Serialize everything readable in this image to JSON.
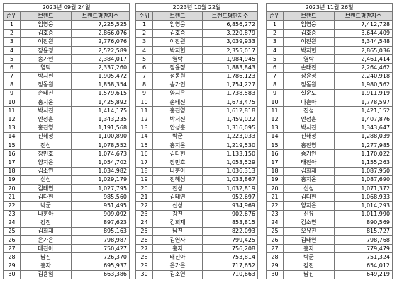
{
  "tables": [
    {
      "date": "2023년 09월 24일",
      "headers": [
        "순위",
        "브랜드",
        "브랜드평판지수"
      ],
      "rows": [
        [
          1,
          "임영웅",
          "7,225,525"
        ],
        [
          2,
          "김호중",
          "2,866,076"
        ],
        [
          3,
          "이찬원",
          "2,776,076"
        ],
        [
          4,
          "장윤정",
          "2,522,589"
        ],
        [
          5,
          "송가인",
          "2,384,017"
        ],
        [
          6,
          "영탁",
          "2,337,260"
        ],
        [
          7,
          "박지현",
          "1,905,472"
        ],
        [
          8,
          "정동원",
          "1,858,354"
        ],
        [
          9,
          "손태진",
          "1,579,615"
        ],
        [
          10,
          "홍지윤",
          "1,425,892"
        ],
        [
          11,
          "박서진",
          "1,414,175"
        ],
        [
          12,
          "안성훈",
          "1,343,235"
        ],
        [
          13,
          "홍진영",
          "1,191,568"
        ],
        [
          14,
          "진해성",
          "1,100,890"
        ],
        [
          15,
          "진성",
          "1,078,552"
        ],
        [
          16,
          "장민호",
          "1,074,673"
        ],
        [
          17,
          "양지은",
          "1,054,702"
        ],
        [
          18,
          "김소연",
          "1,034,982"
        ],
        [
          19,
          "신성",
          "1,029,179"
        ],
        [
          20,
          "김태연",
          "1,027,795"
        ],
        [
          21,
          "김다현",
          "985,560"
        ],
        [
          22,
          "박군",
          "951,495"
        ],
        [
          23,
          "나훈아",
          "909,092"
        ],
        [
          24,
          "강진",
          "897,623"
        ],
        [
          25,
          "김희재",
          "895,163"
        ],
        [
          26,
          "은가은",
          "798,987"
        ],
        [
          27,
          "태진아",
          "750,427"
        ],
        [
          28,
          "남진",
          "726,370"
        ],
        [
          29,
          "홍자",
          "695,937"
        ],
        [
          30,
          "김용임",
          "663,386"
        ]
      ]
    },
    {
      "date": "2023년 10월 22일",
      "headers": [
        "순위",
        "브랜드",
        "브랜드평판지수"
      ],
      "rows": [
        [
          1,
          "임영웅",
          "6,856,272"
        ],
        [
          2,
          "김호중",
          "3,220,879"
        ],
        [
          3,
          "이찬원",
          "3,039,933"
        ],
        [
          4,
          "박지현",
          "2,355,017"
        ],
        [
          5,
          "영탁",
          "1,984,945"
        ],
        [
          6,
          "장윤정",
          "1,883,843"
        ],
        [
          7,
          "정동원",
          "1,786,123"
        ],
        [
          8,
          "송가인",
          "1,754,227"
        ],
        [
          9,
          "양지은",
          "1,738,583"
        ],
        [
          10,
          "손태진",
          "1,673,475"
        ],
        [
          11,
          "홍진영",
          "1,612,818"
        ],
        [
          12,
          "박서진",
          "1,459,022"
        ],
        [
          13,
          "안성훈",
          "1,316,095"
        ],
        [
          14,
          "박군",
          "1,223,033"
        ],
        [
          15,
          "홍지윤",
          "1,219,530"
        ],
        [
          16,
          "김다현",
          "1,133,150"
        ],
        [
          17,
          "장민호",
          "1,053,529"
        ],
        [
          18,
          "나훈아",
          "1,036,313"
        ],
        [
          19,
          "진해성",
          "1,033,867"
        ],
        [
          20,
          "진성",
          "1,032,819"
        ],
        [
          21,
          "김태연",
          "952,697"
        ],
        [
          22,
          "신성",
          "934,969"
        ],
        [
          23,
          "강진",
          "902,676"
        ],
        [
          24,
          "김희재",
          "853,815"
        ],
        [
          25,
          "남진",
          "822,093"
        ],
        [
          26,
          "김연자",
          "799,425"
        ],
        [
          27,
          "홍자",
          "756,208"
        ],
        [
          28,
          "태진아",
          "753,814"
        ],
        [
          29,
          "은가은",
          "717,652"
        ],
        [
          30,
          "김소연",
          "710,663"
        ]
      ]
    },
    {
      "date": "2023년 11월 26일",
      "headers": [
        "순위",
        "브랜드",
        "브랜드평판지수"
      ],
      "rows": [
        [
          1,
          "임영웅",
          "7,412,728"
        ],
        [
          2,
          "김호중",
          "3,644,409"
        ],
        [
          3,
          "이찬원",
          "3,344,548"
        ],
        [
          4,
          "박지현",
          "2,865,036"
        ],
        [
          5,
          "영탁",
          "2,461,414"
        ],
        [
          6,
          "손태진",
          "2,264,462"
        ],
        [
          7,
          "장윤정",
          "2,240,918"
        ],
        [
          8,
          "정동원",
          "1,980,562"
        ],
        [
          9,
          "설운도",
          "1,911,919"
        ],
        [
          10,
          "나훈아",
          "1,778,597"
        ],
        [
          11,
          "진성",
          "1,421,152"
        ],
        [
          12,
          "안성훈",
          "1,407,876"
        ],
        [
          13,
          "박서진",
          "1,343,647"
        ],
        [
          14,
          "진해성",
          "1,288,039"
        ],
        [
          15,
          "홍진영",
          "1,277,985"
        ],
        [
          16,
          "송가인",
          "1,170,022"
        ],
        [
          17,
          "태진아",
          "1,155,263"
        ],
        [
          18,
          "김희재",
          "1,087,950"
        ],
        [
          19,
          "홍지윤",
          "1,087,690"
        ],
        [
          20,
          "신성",
          "1,071,372"
        ],
        [
          21,
          "김다현",
          "1,068,933"
        ],
        [
          22,
          "양지은",
          "1,014,293"
        ],
        [
          23,
          "신유",
          "1,011,990"
        ],
        [
          24,
          "김소연",
          "890,569"
        ],
        [
          25,
          "오유진",
          "815,727"
        ],
        [
          26,
          "김태연",
          "798,768"
        ],
        [
          27,
          "홍자",
          "779,479"
        ],
        [
          28,
          "박군",
          "751,324"
        ],
        [
          29,
          "강진",
          "654,012"
        ],
        [
          30,
          "남진",
          "649,219"
        ]
      ]
    }
  ]
}
